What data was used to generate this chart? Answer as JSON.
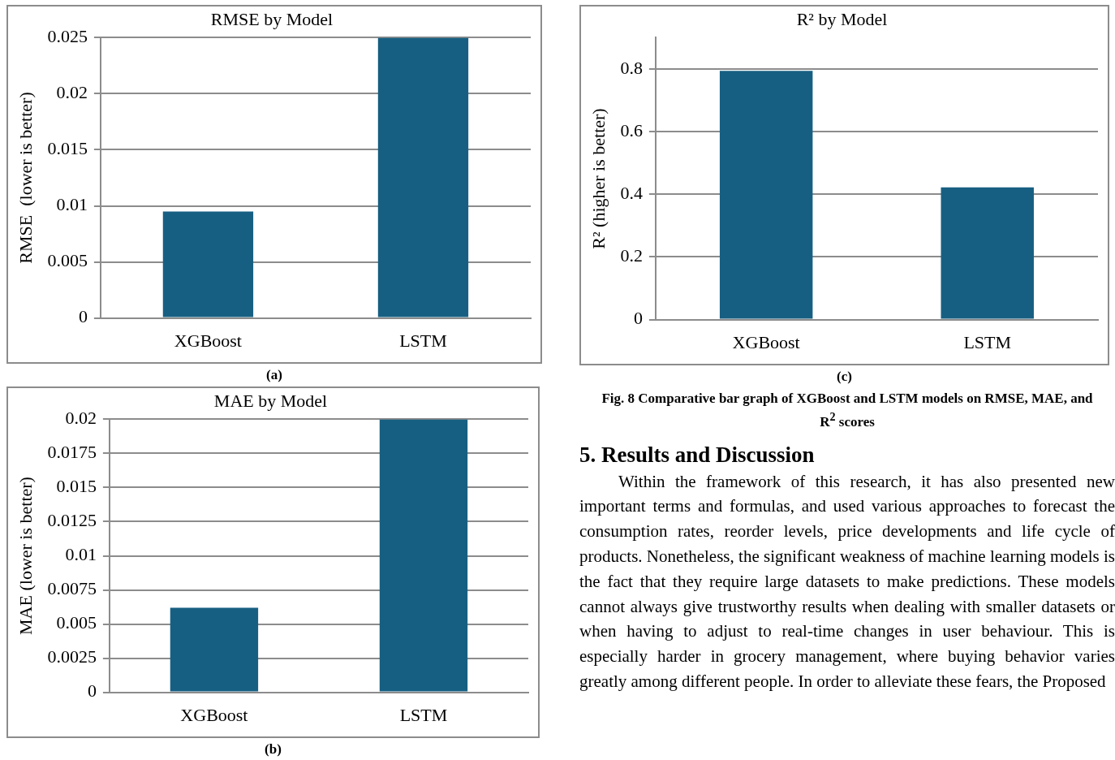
{
  "chart_data": [
    {
      "type": "bar",
      "title": "RMSE by Model",
      "ylabel": "RMSE  (lower is better)",
      "categories": [
        "XGBoost",
        "LSTM"
      ],
      "values": [
        0.0095,
        0.025
      ],
      "color": "#175f82",
      "ylim": [
        0,
        0.025
      ],
      "yticks": [
        0,
        0.005,
        0.01,
        0.015,
        0.02,
        0.025
      ],
      "grid": "y",
      "legend": false,
      "annotations": [
        "(a)"
      ]
    },
    {
      "type": "bar",
      "title": "MAE by Model",
      "ylabel": "MAE (lower is better)",
      "categories": [
        "XGBoost",
        "LSTM"
      ],
      "values": [
        0.0062,
        0.02
      ],
      "color": "#175f82",
      "ylim": [
        0,
        0.02
      ],
      "yticks": [
        0,
        0.0025,
        0.005,
        0.0075,
        0.01,
        0.0125,
        0.015,
        0.0175,
        0.02
      ],
      "grid": "y",
      "legend": false,
      "annotations": [
        "(b)"
      ]
    },
    {
      "type": "bar",
      "title": "R² by Model",
      "ylabel": "R² (higher is better)",
      "categories": [
        "XGBoost",
        "LSTM"
      ],
      "values": [
        0.794,
        0.422
      ],
      "color": "#175f82",
      "ylim": [
        0,
        0.9
      ],
      "yticks": [
        0,
        0.2,
        0.4,
        0.6,
        0.8
      ],
      "grid": "y",
      "legend": false,
      "annotations": [
        "(c)"
      ]
    },
    {
      "type": "other",
      "annotations": [
        "Fig. 8 Comparative bar graph of XGBoost and LSTM models on RMSE, MAE, and R$^{2}$ scores",
        "5. Results and Discussion",
        "Within the framework of this research, it has also presented new important terms and formulas, and used various approaches to forecast the consumption rates, reorder levels, price developments and life cycle of products. Nonetheless, the significant weakness of machine learning models is the fact that they require large datasets to make predictions. These models cannot always give trustworthy results when dealing with smaller datasets or when having to adjust to real-time changes in user behaviour. This is especially harder in grocery management, where buying behavior varies greatly among different people. In order to alleviate these fears, the Proposed"
      ]
    }
  ]
}
